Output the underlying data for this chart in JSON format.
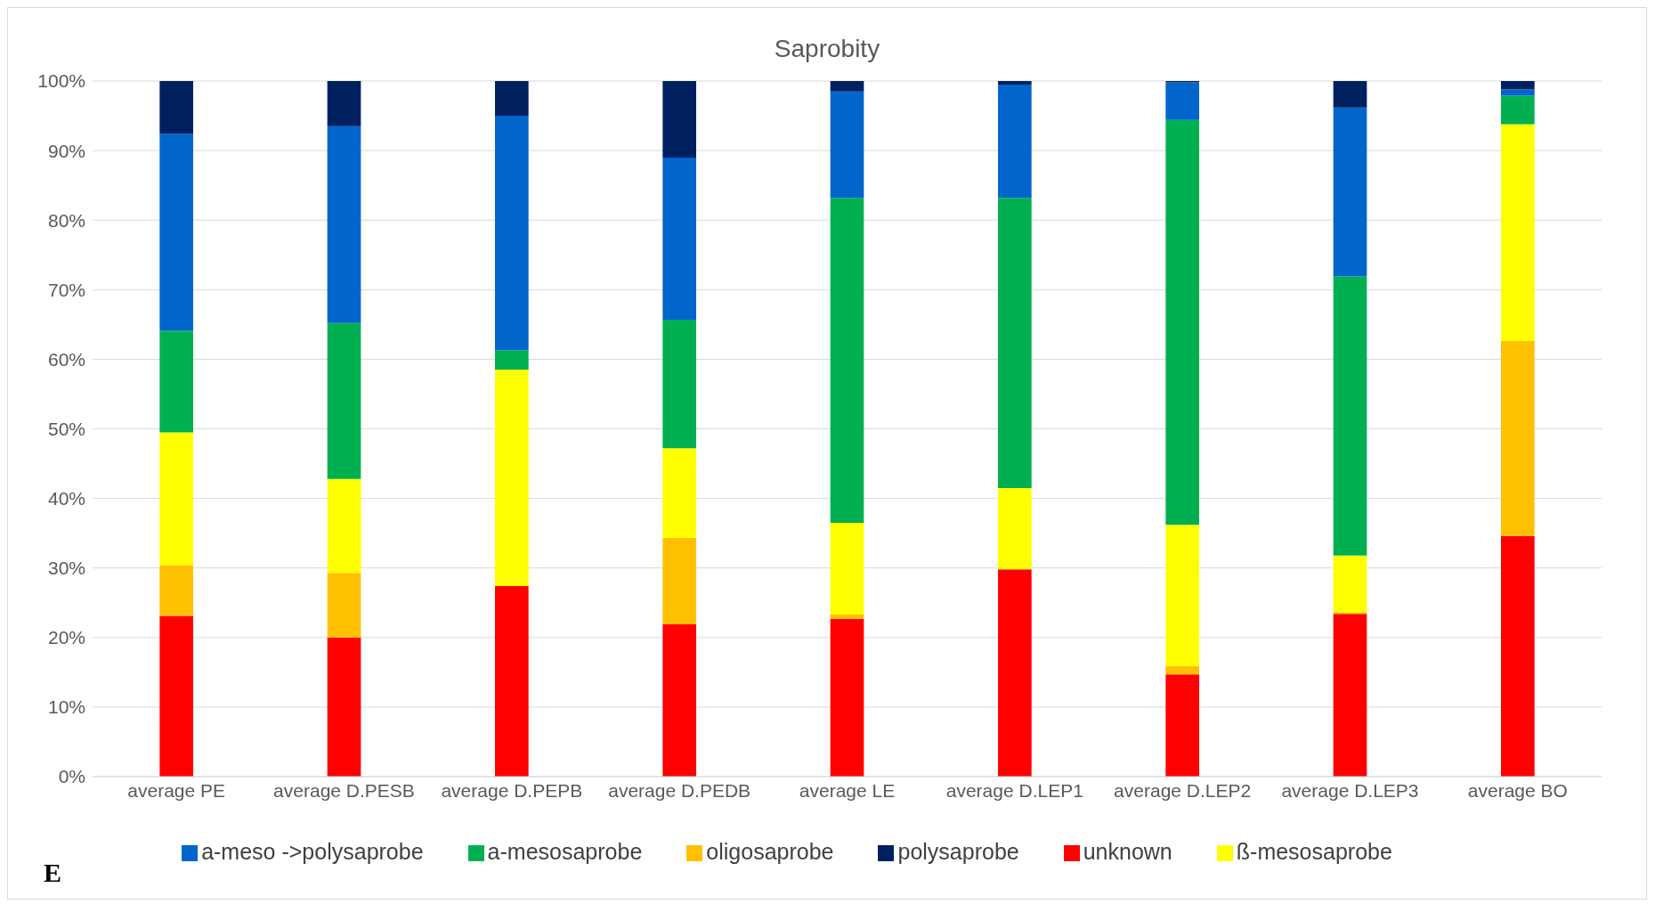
{
  "chart_data": {
    "type": "bar",
    "title": "Saprobity",
    "stacked": true,
    "categories": [
      "average PE",
      "average D.PESB",
      "average D.PEPB",
      "average D.PEDB",
      "average LE",
      "average D.LEP1",
      "average D.LEP2",
      "average D.LEP3",
      "average BO"
    ],
    "series": [
      {
        "name": "unknown",
        "color": "#ff0000",
        "values": [
          23.1,
          20.0,
          27.4,
          21.9,
          22.7,
          29.8,
          14.7,
          23.4,
          34.6
        ]
      },
      {
        "name": "oligosaprobe",
        "color": "#ffc000",
        "values": [
          7.3,
          9.3,
          0,
          12.4,
          0.6,
          0,
          1.2,
          0.2,
          28.0
        ]
      },
      {
        "name": "ß-mesosaprobe",
        "color": "#ffff00",
        "values": [
          19.1,
          13.5,
          31.1,
          12.9,
          13.2,
          11.7,
          20.3,
          8.2,
          31.2
        ]
      },
      {
        "name": "a-mesosaprobe",
        "color": "#00b050",
        "values": [
          14.6,
          22.4,
          2.8,
          18.5,
          46.7,
          41.7,
          58.2,
          40.1,
          4.1
        ]
      },
      {
        "name": "a-meso ->polysaprobe",
        "color": "#0066cc",
        "values": [
          28.3,
          28.3,
          33.7,
          23.3,
          15.3,
          16.3,
          5.4,
          24.3,
          0.9
        ]
      },
      {
        "name": "polysaprobe",
        "color": "#002060",
        "values": [
          7.6,
          6.5,
          5.0,
          11.0,
          1.5,
          0.5,
          0.2,
          3.8,
          1.2
        ]
      }
    ],
    "ylim": [
      0,
      100
    ],
    "yticks": [
      {
        "value": 0,
        "label": "0%"
      },
      {
        "value": 10,
        "label": "10%"
      },
      {
        "value": 20,
        "label": "20%"
      },
      {
        "value": 30,
        "label": "30%"
      },
      {
        "value": 40,
        "label": "40%"
      },
      {
        "value": 50,
        "label": "50%"
      },
      {
        "value": 60,
        "label": "60%"
      },
      {
        "value": 70,
        "label": "70%"
      },
      {
        "value": 80,
        "label": "80%"
      },
      {
        "value": 90,
        "label": "90%"
      },
      {
        "value": 100,
        "label": "100%"
      }
    ],
    "grid": "y",
    "legend": "bottom",
    "annotations": [
      "E"
    ]
  }
}
